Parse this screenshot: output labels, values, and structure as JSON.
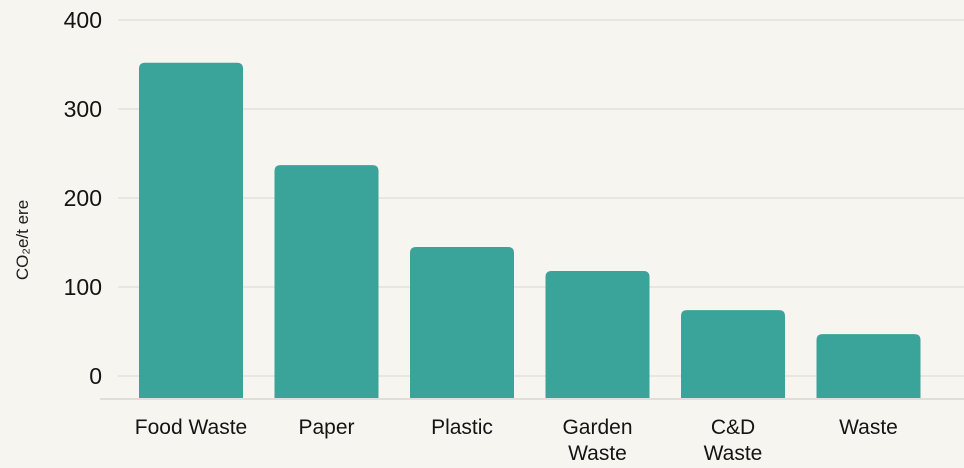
{
  "chart_data": {
    "type": "bar",
    "title": "",
    "xlabel": "",
    "ylabel": "CO₂e/t ere",
    "categories": [
      [
        "Food Waste"
      ],
      [
        "Paper"
      ],
      [
        "Plastic"
      ],
      [
        "Garden",
        "Waste"
      ],
      [
        "C&D",
        "Waste"
      ],
      [
        "Waste"
      ]
    ],
    "values": [
      352,
      237,
      145,
      118,
      74,
      47
    ],
    "ylim": [
      0,
      400
    ],
    "yticks": [
      0,
      100,
      200,
      300,
      400
    ],
    "grid": true,
    "legend": "none",
    "bar_color": "#3aa39a",
    "background_color": "#f7f5f0"
  }
}
